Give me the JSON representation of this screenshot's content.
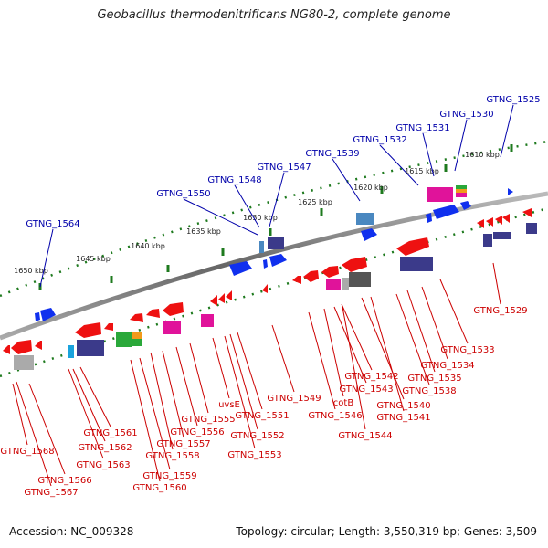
{
  "title": "Geobacillus thermodenitrificans NG80-2, complete genome",
  "footer": {
    "accession_label": "Accession: NC_009328",
    "stats_label": "Topology: circular; Length: 3,550,319 bp; Genes: 3,509"
  },
  "colors": {
    "upper_labels": "#0000aa",
    "lower_labels": "#cc0000",
    "backbone": "#777777",
    "scale_ticks": "#1e7a1e"
  },
  "scale_marks": [
    "1610 kbp",
    "1615 kbp",
    "1620 kbp",
    "1625 kbp",
    "1630 kbp",
    "1635 kbp",
    "1640 kbp",
    "1645 kbp",
    "1650 kbp"
  ],
  "upper_gene_labels": [
    "GTNG_1525",
    "GTNG_1530",
    "GTNG_1531",
    "GTNG_1532",
    "GTNG_1539",
    "GTNG_1547",
    "GTNG_1548",
    "GTNG_1550",
    "GTNG_1564"
  ],
  "lower_gene_labels": [
    "GTNG_1529",
    "GTNG_1533",
    "GTNG_1534",
    "GTNG_1535",
    "GTNG_1538",
    "GTNG_1541",
    "GTNG_1540",
    "GTNG_1542",
    "GTNG_1543",
    "cotB",
    "GTNG_1546",
    "GTNG_1544",
    "GTNG_1549",
    "GTNG_1551",
    "uvsE",
    "GTNG_1552",
    "GTNG_1553",
    "GTNG_1555",
    "GTNG_1556",
    "GTNG_1557",
    "GTNG_1558",
    "GTNG_1559",
    "GTNG_1560",
    "GTNG_1561",
    "GTNG_1562",
    "GTNG_1563",
    "GTNG_1568",
    "GTNG_1566",
    "GTNG_1567"
  ]
}
